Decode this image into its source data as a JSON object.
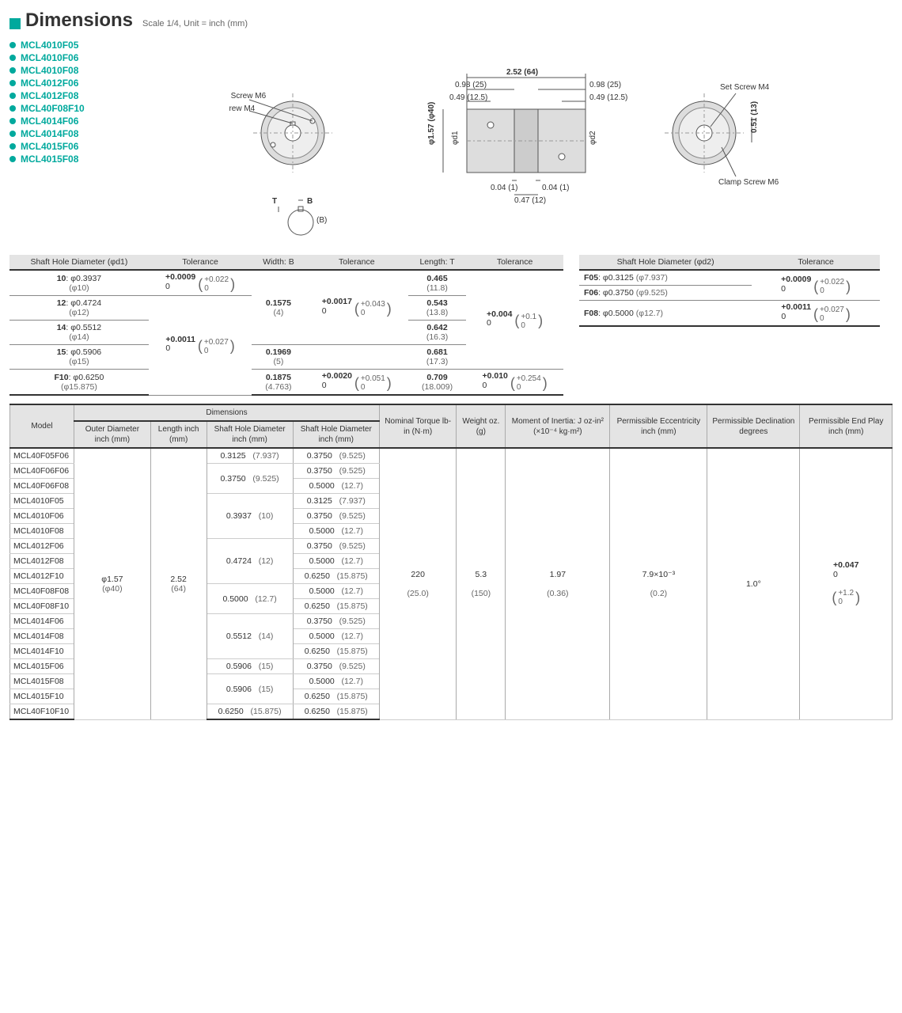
{
  "header": {
    "title": "Dimensions",
    "scale": "Scale 1/4, Unit = inch (mm)"
  },
  "accent_color": "#00a99d",
  "parts": [
    "MCL4010F05",
    "MCL4010F06",
    "MCL4010F08",
    "MCL4012F06",
    "MCL4012F08",
    "MCL40F08F10",
    "MCL4014F06",
    "MCL4014F08",
    "MCL4015F06",
    "MCL4015F08"
  ],
  "diagram": {
    "labels": {
      "clamp_screw": "Clamp Screw M6",
      "set_screw": "Set Screw M4",
      "dim_top_total": "2.52 (64)",
      "dim_top_side_l": "0.98 (25)",
      "dim_top_side_r": "0.98 (25)",
      "dim_top_half_l": "0.49 (12.5)",
      "dim_top_half_r": "0.49 (12.5)",
      "dim_dia": "φ1.57 (φ40)",
      "dim_d1": "φd1",
      "dim_d2": "φd2",
      "dim_bot_gap_l": "0.04 (1)",
      "dim_bot_gap_r": "0.04 (1)",
      "dim_bot_mid": "0.47 (12)",
      "dim_right_h": "0.51 (13)",
      "key_T": "T",
      "key_B": "B",
      "key_B2": "(B)"
    }
  },
  "tol_d1": {
    "headers": [
      "Shaft Hole Diameter (φd1)",
      "Tolerance",
      "Width: B",
      "Tolerance",
      "Length: T",
      "Tolerance"
    ],
    "rows": [
      {
        "d": "10",
        "dv": "φ0.3937",
        "dmm": "(φ10)",
        "tol": {
          "t": "+0.0009",
          "b": "0",
          "pt": "+0.022",
          "pb": "0"
        },
        "b": "",
        "btol": "",
        "t": "0.465",
        "tmm": "(11.8)",
        "ttol": ""
      },
      {
        "d": "12",
        "dv": "φ0.4724",
        "dmm": "(φ12)",
        "tol": "",
        "b": "0.1575",
        "bmm": "(4)",
        "btol": {
          "t": "+0.0017",
          "b": "0",
          "pt": "+0.043",
          "pb": "0"
        },
        "t": "0.543",
        "tmm": "(13.8)",
        "ttol": {
          "t": "+0.004",
          "b": "0",
          "pt": "+0.1",
          "pb": "0"
        }
      },
      {
        "d": "14",
        "dv": "φ0.5512",
        "dmm": "(φ14)",
        "tol": {
          "t": "+0.0011",
          "b": "0",
          "pt": "+0.027",
          "pb": "0"
        },
        "b": "",
        "btol": "",
        "t": "0.642",
        "tmm": "(16.3)",
        "ttol": ""
      },
      {
        "d": "15",
        "dv": "φ0.5906",
        "dmm": "(φ15)",
        "tol": "",
        "b": "0.1969",
        "bmm": "(5)",
        "btol": "",
        "t": "0.681",
        "tmm": "(17.3)",
        "ttol": ""
      },
      {
        "d": "F10",
        "dv": "φ0.6250",
        "dmm": "(φ15.875)",
        "tol": "",
        "b": "0.1875",
        "bmm": "(4.763)",
        "btol": {
          "t": "+0.0020",
          "b": "0",
          "pt": "+0.051",
          "pb": "0"
        },
        "t": "0.709",
        "tmm": "(18.009)",
        "ttol": {
          "t": "+0.010",
          "b": "0",
          "pt": "+0.254",
          "pb": "0"
        }
      }
    ]
  },
  "tol_d2": {
    "headers": [
      "Shaft Hole Diameter (φd2)",
      "Tolerance"
    ],
    "rows": [
      {
        "d": "F05",
        "dv": "φ0.3125",
        "dmm": "(φ7.937)",
        "tol": {
          "t": "+0.0009",
          "b": "0",
          "pt": "+0.022",
          "pb": "0"
        }
      },
      {
        "d": "F06",
        "dv": "φ0.3750",
        "dmm": "(φ9.525)",
        "tol": ""
      },
      {
        "d": "F08",
        "dv": "φ0.5000",
        "dmm": "(φ12.7)",
        "tol": {
          "t": "+0.0011",
          "b": "0",
          "pt": "+0.027",
          "pb": "0"
        }
      }
    ]
  },
  "main_table": {
    "headers": {
      "model": "Model",
      "dims": "Dimensions",
      "od": "Outer Diameter inch (mm)",
      "len": "Length inch (mm)",
      "sh1": "Shaft Hole Diameter inch   (mm)",
      "sh2": "Shaft Hole Diameter inch   (mm)",
      "torque": "Nominal Torque lb-in (N·m)",
      "weight": "Weight oz. (g)",
      "inertia": "Moment of Inertia: J oz-in² (×10⁻⁴ kg·m²)",
      "ecc": "Permissible Eccentricity inch (mm)",
      "dec": "Permissible Declination degrees",
      "end": "Permissible End Play inch (mm)"
    },
    "shared": {
      "od": "φ1.57",
      "od_mm": "(φ40)",
      "len": "2.52",
      "len_mm": "(64)",
      "torque": "220",
      "torque_mm": "(25.0)",
      "weight": "5.3",
      "weight_mm": "(150)",
      "inertia": "1.97",
      "inertia_mm": "(0.36)",
      "ecc": "7.9×10⁻³",
      "ecc_mm": "(0.2)",
      "dec": "1.0°",
      "end_t": "+0.047",
      "end_b": "0",
      "end_pt": "+1.2",
      "end_pb": "0"
    },
    "rows": [
      {
        "m": "MCL40F05F06",
        "s1": "0.3125",
        "s1m": "(7.937)",
        "s2": "0.3750",
        "s2m": "(9.525)",
        "s1span": 1
      },
      {
        "m": "MCL40F06F06",
        "s1": "0.3750",
        "s1m": "(9.525)",
        "s2": "0.3750",
        "s2m": "(9.525)",
        "s1span": 2
      },
      {
        "m": "MCL40F06F08",
        "s2": "0.5000",
        "s2m": "(12.7)"
      },
      {
        "m": "MCL4010F05",
        "s1": "0.3937",
        "s1m": "(10)",
        "s2": "0.3125",
        "s2m": "(7.937)",
        "s1span": 3
      },
      {
        "m": "MCL4010F06",
        "s2": "0.3750",
        "s2m": "(9.525)"
      },
      {
        "m": "MCL4010F08",
        "s2": "0.5000",
        "s2m": "(12.7)"
      },
      {
        "m": "MCL4012F06",
        "s1": "0.4724",
        "s1m": "(12)",
        "s2": "0.3750",
        "s2m": "(9.525)",
        "s1span": 3
      },
      {
        "m": "MCL4012F08",
        "s2": "0.5000",
        "s2m": "(12.7)"
      },
      {
        "m": "MCL4012F10",
        "s2": "0.6250",
        "s2m": "(15.875)"
      },
      {
        "m": "MCL40F08F08",
        "s1": "0.5000",
        "s1m": "(12.7)",
        "s2": "0.5000",
        "s2m": "(12.7)",
        "s1span": 2
      },
      {
        "m": "MCL40F08F10",
        "s2": "0.6250",
        "s2m": "(15.875)"
      },
      {
        "m": "MCL4014F06",
        "s1": "0.5512",
        "s1m": "(14)",
        "s2": "0.3750",
        "s2m": "(9.525)",
        "s1span": 3
      },
      {
        "m": "MCL4014F08",
        "s2": "0.5000",
        "s2m": "(12.7)"
      },
      {
        "m": "MCL4014F10",
        "s2": "0.6250",
        "s2m": "(15.875)"
      },
      {
        "m": "MCL4015F06",
        "s1": "0.5906",
        "s1m": "(15)",
        "s2": "0.3750",
        "s2m": "(9.525)",
        "s1span": 1
      },
      {
        "m": "MCL4015F08",
        "s1": "0.5906",
        "s1m": "(15)",
        "s2": "0.5000",
        "s2m": "(12.7)",
        "s1span": 2
      },
      {
        "m": "MCL4015F10",
        "s2": "0.6250",
        "s2m": "(15.875)"
      },
      {
        "m": "MCL40F10F10",
        "s1": "0.6250",
        "s1m": "(15.875)",
        "s2": "0.6250",
        "s2m": "(15.875)",
        "s1span": 1
      }
    ]
  }
}
